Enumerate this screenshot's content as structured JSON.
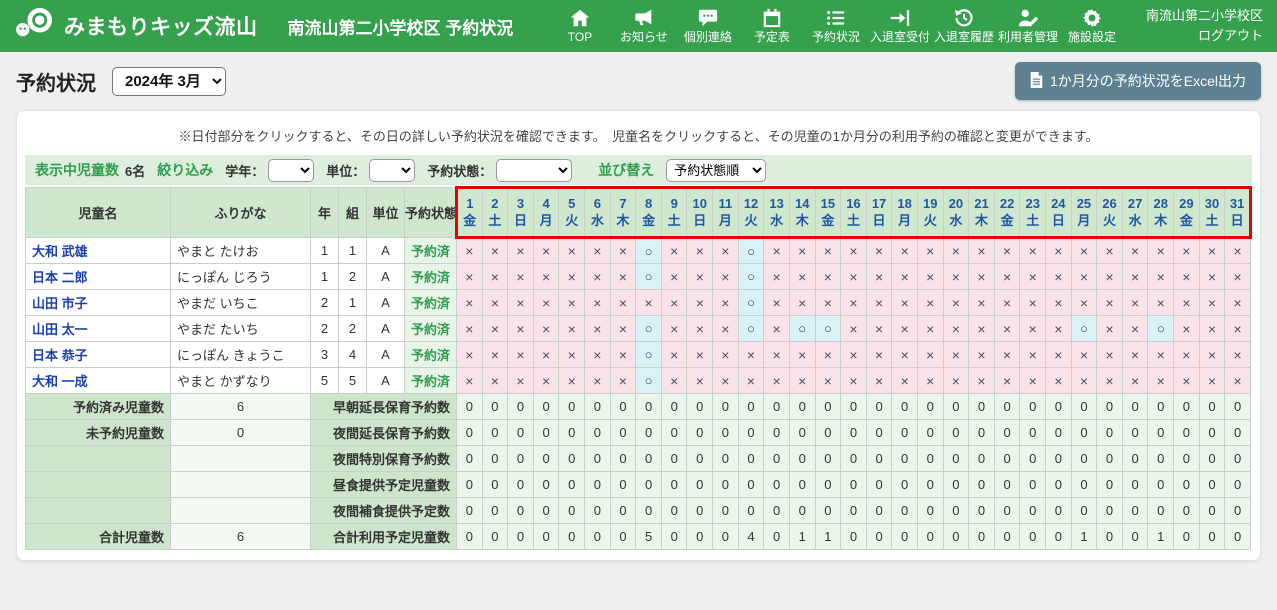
{
  "navbar": {
    "logo_text": "みまもりキッズ流山",
    "title": "南流山第二小学校区 予約状況",
    "items": [
      {
        "icon": "home-icon",
        "label": "TOP"
      },
      {
        "icon": "megaphone-icon",
        "label": "お知らせ"
      },
      {
        "icon": "speech-bubble-icon",
        "label": "個別連絡"
      },
      {
        "icon": "calendar-icon",
        "label": "予定表"
      },
      {
        "icon": "list-icon",
        "label": "予約状況"
      },
      {
        "icon": "enter-door-icon",
        "label": "入退室受付"
      },
      {
        "icon": "history-icon",
        "label": "入退室履歴"
      },
      {
        "icon": "user-edit-icon",
        "label": "利用者管理"
      },
      {
        "icon": "gear-icon",
        "label": "施設設定"
      }
    ],
    "school_name": "南流山第二小学校区",
    "logout_label": "ログアウト"
  },
  "page": {
    "title": "予約状況",
    "month_select_value": "2024年 3月",
    "excel_button_label": "1か月分の予約状況をExcel出力",
    "info_text": "※日付部分をクリックすると、その日の詳しい予約状況を確認できます。　児童名をクリックすると、その児童の1か月分の利用予約の確認と変更ができます。"
  },
  "filter_bar": {
    "children_count_label": "表示中児童数",
    "children_count_value": "6名",
    "narrow_label": "絞り込み",
    "grade_label": "学年：",
    "grade_value": "",
    "unit_label": "単位：",
    "unit_value": "",
    "status_label": "予約状態：",
    "status_value": "",
    "sort_label": "並び替え",
    "sort_value": "予約状態順"
  },
  "table": {
    "headers": [
      "児童名",
      "ふりがな",
      "年",
      "組",
      "単位",
      "予約状態"
    ],
    "days": [
      {
        "d": 1,
        "w": "金"
      },
      {
        "d": 2,
        "w": "土"
      },
      {
        "d": 3,
        "w": "日"
      },
      {
        "d": 4,
        "w": "月"
      },
      {
        "d": 5,
        "w": "火"
      },
      {
        "d": 6,
        "w": "水"
      },
      {
        "d": 7,
        "w": "木"
      },
      {
        "d": 8,
        "w": "金"
      },
      {
        "d": 9,
        "w": "土"
      },
      {
        "d": 10,
        "w": "日"
      },
      {
        "d": 11,
        "w": "月"
      },
      {
        "d": 12,
        "w": "火"
      },
      {
        "d": 13,
        "w": "水"
      },
      {
        "d": 14,
        "w": "木"
      },
      {
        "d": 15,
        "w": "金"
      },
      {
        "d": 16,
        "w": "土"
      },
      {
        "d": 17,
        "w": "日"
      },
      {
        "d": 18,
        "w": "月"
      },
      {
        "d": 19,
        "w": "火"
      },
      {
        "d": 20,
        "w": "水"
      },
      {
        "d": 21,
        "w": "木"
      },
      {
        "d": 22,
        "w": "金"
      },
      {
        "d": 23,
        "w": "土"
      },
      {
        "d": 24,
        "w": "日"
      },
      {
        "d": 25,
        "w": "月"
      },
      {
        "d": 26,
        "w": "火"
      },
      {
        "d": 27,
        "w": "水"
      },
      {
        "d": 28,
        "w": "木"
      },
      {
        "d": 29,
        "w": "金"
      },
      {
        "d": 30,
        "w": "土"
      },
      {
        "d": 31,
        "w": "日"
      }
    ],
    "mark_symbols": {
      "x": "×",
      "o": "○"
    },
    "children": [
      {
        "name": "大和 武雄",
        "furigana": "やまと たけお",
        "year": "1",
        "cls": "1",
        "unit": "A",
        "status": "予約済",
        "marks": "xxxxxxxoxxxoxxxxxxxxxxxxxxxxxxx"
      },
      {
        "name": "日本 二郎",
        "furigana": "にっぽん じろう",
        "year": "1",
        "cls": "2",
        "unit": "A",
        "status": "予約済",
        "marks": "xxxxxxxoxxxoxxxxxxxxxxxxxxxxxxx"
      },
      {
        "name": "山田 市子",
        "furigana": "やまだ いちこ",
        "year": "2",
        "cls": "1",
        "unit": "A",
        "status": "予約済",
        "marks": "xxxxxxxxxxxoxxxxxxxxxxxxxxxxxxx"
      },
      {
        "name": "山田 太一",
        "furigana": "やまだ たいち",
        "year": "2",
        "cls": "2",
        "unit": "A",
        "status": "予約済",
        "marks": "xxxxxxxoxxxoxooxxxxxxxxxoxxoxxx"
      },
      {
        "name": "日本 恭子",
        "furigana": "にっぽん きょうこ",
        "year": "3",
        "cls": "4",
        "unit": "A",
        "status": "予約済",
        "marks": "xxxxxxxoxxxxxxxxxxxxxxxxxxxxxxx"
      },
      {
        "name": "大和 一成",
        "furigana": "やまと かずなり",
        "year": "5",
        "cls": "5",
        "unit": "A",
        "status": "予約済",
        "marks": "xxxxxxxoxxxxxxxxxxxxxxxxxxxxxxx"
      }
    ],
    "summary_rows": [
      {
        "left_label": "予約済み児童数",
        "left_value": "6",
        "right_label": "早朝延長保育予約数",
        "values": [
          0,
          0,
          0,
          0,
          0,
          0,
          0,
          0,
          0,
          0,
          0,
          0,
          0,
          0,
          0,
          0,
          0,
          0,
          0,
          0,
          0,
          0,
          0,
          0,
          0,
          0,
          0,
          0,
          0,
          0,
          0
        ]
      },
      {
        "left_label": "未予約児童数",
        "left_value": "0",
        "right_label": "夜間延長保育予約数",
        "values": [
          0,
          0,
          0,
          0,
          0,
          0,
          0,
          0,
          0,
          0,
          0,
          0,
          0,
          0,
          0,
          0,
          0,
          0,
          0,
          0,
          0,
          0,
          0,
          0,
          0,
          0,
          0,
          0,
          0,
          0,
          0
        ]
      },
      {
        "left_label": "",
        "left_value": "",
        "right_label": "夜間特別保育予約数",
        "values": [
          0,
          0,
          0,
          0,
          0,
          0,
          0,
          0,
          0,
          0,
          0,
          0,
          0,
          0,
          0,
          0,
          0,
          0,
          0,
          0,
          0,
          0,
          0,
          0,
          0,
          0,
          0,
          0,
          0,
          0,
          0
        ]
      },
      {
        "left_label": "",
        "left_value": "",
        "right_label": "昼食提供予定児童数",
        "values": [
          0,
          0,
          0,
          0,
          0,
          0,
          0,
          0,
          0,
          0,
          0,
          0,
          0,
          0,
          0,
          0,
          0,
          0,
          0,
          0,
          0,
          0,
          0,
          0,
          0,
          0,
          0,
          0,
          0,
          0,
          0
        ]
      },
      {
        "left_label": "",
        "left_value": "",
        "right_label": "夜間補食提供予定数",
        "values": [
          0,
          0,
          0,
          0,
          0,
          0,
          0,
          0,
          0,
          0,
          0,
          0,
          0,
          0,
          0,
          0,
          0,
          0,
          0,
          0,
          0,
          0,
          0,
          0,
          0,
          0,
          0,
          0,
          0,
          0,
          0
        ]
      },
      {
        "left_label": "合計児童数",
        "left_value": "6",
        "right_label": "合計利用予定児童数",
        "values": [
          0,
          0,
          0,
          0,
          0,
          0,
          0,
          5,
          0,
          0,
          0,
          4,
          0,
          1,
          1,
          0,
          0,
          0,
          0,
          0,
          0,
          0,
          0,
          0,
          1,
          0,
          0,
          1,
          0,
          0,
          0
        ]
      }
    ]
  },
  "colors": {
    "brand_green": "#35a14d",
    "header_cell_green": "#cfe7cd",
    "filter_bar_green": "#ddeedd",
    "status_green_text": "#2f9e4f",
    "link_blue": "#1d3fae",
    "date_header_blue": "#2156a5",
    "mark_x_bg": "#fae3e8",
    "mark_o_bg": "#d9f2f8",
    "summary_day_bg": "#eaf6ea",
    "annotation_red": "#e60000",
    "excel_button_bg": "#5d8193"
  }
}
